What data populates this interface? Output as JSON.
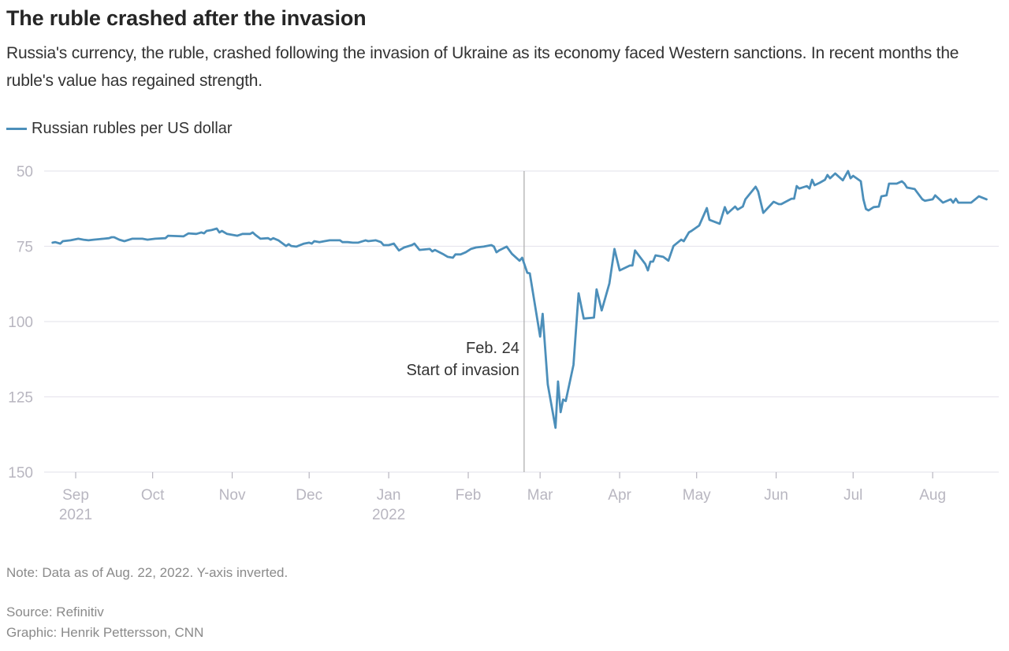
{
  "title": "The ruble crashed after the invasion",
  "subtitle": "Russia's currency, the ruble, crashed following the invasion of Ukraine as its economy faced Western sanctions. In recent months the ruble's value has regained strength.",
  "note": "Note: Data as of Aug. 22, 2022. Y-axis inverted.",
  "source": "Source: Refinitiv",
  "credit": "Graphic: Henrik Pettersson, CNN",
  "colors": {
    "line": "#4c8fba",
    "grid": "#e8e6ee",
    "axis_text": "#b8b6c0",
    "annotation_line": "#b0b0b0"
  },
  "chart_data": {
    "type": "line",
    "title": "The ruble crashed after the invasion",
    "xlabel": "",
    "ylabel": "",
    "y_inverted": true,
    "ylim": [
      50,
      150
    ],
    "yticks": [
      50,
      75,
      100,
      125,
      150
    ],
    "grid": true,
    "legend_position": "top-left",
    "x_unit": "days since 2021-09-01",
    "x_range_days": [
      -10,
      357
    ],
    "xticks": [
      {
        "day": 0,
        "label": "Sep",
        "sublabel": "2021"
      },
      {
        "day": 30,
        "label": "Oct",
        "sublabel": ""
      },
      {
        "day": 61,
        "label": "Nov",
        "sublabel": ""
      },
      {
        "day": 91,
        "label": "Dec",
        "sublabel": ""
      },
      {
        "day": 122,
        "label": "Jan",
        "sublabel": "2022"
      },
      {
        "day": 153,
        "label": "Feb",
        "sublabel": ""
      },
      {
        "day": 181,
        "label": "Mar",
        "sublabel": ""
      },
      {
        "day": 212,
        "label": "Apr",
        "sublabel": ""
      },
      {
        "day": 242,
        "label": "May",
        "sublabel": ""
      },
      {
        "day": 273,
        "label": "Jun",
        "sublabel": ""
      },
      {
        "day": 303,
        "label": "Jul",
        "sublabel": ""
      },
      {
        "day": 334,
        "label": "Aug",
        "sublabel": ""
      }
    ],
    "annotation": {
      "day": 176,
      "line1": "Feb. 24",
      "line2": "Start of invasion"
    },
    "series": [
      {
        "name": "Russian rubles per US dollar",
        "x": [
          -9,
          -8,
          -6,
          -5,
          -2,
          1,
          3,
          5,
          7,
          11,
          13,
          14,
          15,
          17,
          19,
          22,
          26,
          28,
          31,
          35,
          36,
          42,
          44,
          47,
          49,
          50,
          51,
          53,
          55,
          56,
          57,
          59,
          63,
          65,
          68,
          69,
          70,
          72,
          75,
          76,
          77,
          79,
          82,
          83,
          84,
          86,
          89,
          91,
          92,
          93,
          95,
          97,
          99,
          103,
          104,
          106,
          108,
          110,
          113,
          114,
          117,
          119,
          120,
          122,
          124,
          126,
          128,
          131,
          132,
          134,
          138,
          139,
          140,
          143,
          145,
          147,
          148,
          150,
          152,
          154,
          156,
          159,
          162,
          163,
          164,
          165,
          168,
          170,
          173,
          174,
          176,
          177,
          181,
          182,
          184,
          187,
          188,
          189,
          190,
          191,
          194,
          196,
          198,
          202,
          203,
          205,
          208,
          210,
          212,
          216,
          217,
          218,
          222,
          223,
          224,
          225,
          226,
          229,
          231,
          233,
          236,
          237,
          239,
          240,
          243,
          246,
          247,
          251,
          253,
          254,
          257,
          258,
          260,
          261,
          265,
          266,
          268,
          272,
          274,
          275,
          279,
          280,
          281,
          282,
          285,
          286,
          287,
          288,
          290,
          292,
          293,
          294,
          296,
          299,
          301,
          302,
          303,
          306,
          307,
          308,
          309,
          311,
          313,
          314,
          316,
          317,
          320,
          322,
          323,
          324,
          327,
          330,
          331,
          334,
          335,
          338,
          341,
          342,
          343,
          344,
          349,
          352,
          355
        ],
        "values": [
          73.8,
          73.6,
          74.1,
          73.3,
          73.0,
          72.5,
          72.8,
          73.0,
          72.8,
          72.5,
          72.3,
          72.0,
          72.0,
          72.8,
          73.3,
          72.5,
          72.5,
          72.8,
          72.5,
          72.3,
          71.5,
          71.7,
          70.7,
          70.9,
          70.4,
          70.7,
          69.9,
          69.6,
          69.1,
          70.4,
          69.9,
          70.9,
          71.5,
          70.9,
          70.9,
          70.4,
          71.2,
          72.5,
          72.3,
          72.8,
          72.3,
          73.0,
          74.9,
          74.3,
          74.9,
          75.1,
          74.1,
          73.8,
          74.1,
          73.3,
          73.6,
          73.3,
          73.0,
          73.0,
          73.6,
          73.6,
          73.8,
          73.8,
          73.0,
          73.3,
          73.0,
          73.6,
          74.6,
          74.6,
          74.1,
          76.4,
          75.4,
          74.6,
          74.1,
          76.2,
          75.9,
          76.7,
          76.2,
          77.5,
          78.5,
          78.8,
          77.7,
          77.7,
          77.0,
          75.9,
          75.4,
          75.1,
          74.6,
          75.1,
          77.0,
          76.4,
          75.1,
          77.5,
          79.8,
          78.8,
          83.8,
          84.0,
          105.0,
          97.4,
          120.9,
          135.3,
          119.9,
          130.1,
          125.9,
          126.4,
          114.4,
          90.6,
          99.0,
          98.7,
          89.3,
          96.3,
          87.4,
          75.9,
          83.0,
          81.4,
          81.4,
          76.4,
          80.9,
          83.0,
          80.1,
          80.1,
          78.0,
          78.5,
          79.8,
          74.9,
          72.8,
          73.3,
          70.4,
          69.9,
          68.1,
          62.3,
          66.2,
          67.5,
          62.0,
          64.1,
          61.8,
          62.8,
          61.8,
          59.4,
          55.2,
          56.8,
          63.9,
          60.2,
          61.0,
          61.0,
          59.2,
          59.2,
          55.0,
          55.8,
          55.0,
          55.8,
          52.9,
          54.7,
          53.9,
          52.9,
          51.3,
          52.4,
          50.8,
          53.1,
          50.0,
          52.4,
          51.6,
          53.4,
          59.4,
          62.6,
          63.1,
          62.0,
          61.8,
          58.4,
          58.1,
          54.2,
          54.2,
          53.4,
          54.2,
          55.5,
          56.0,
          59.4,
          59.9,
          59.4,
          58.1,
          60.5,
          59.4,
          60.5,
          59.2,
          60.5,
          60.5,
          58.4,
          59.4
        ]
      }
    ]
  }
}
